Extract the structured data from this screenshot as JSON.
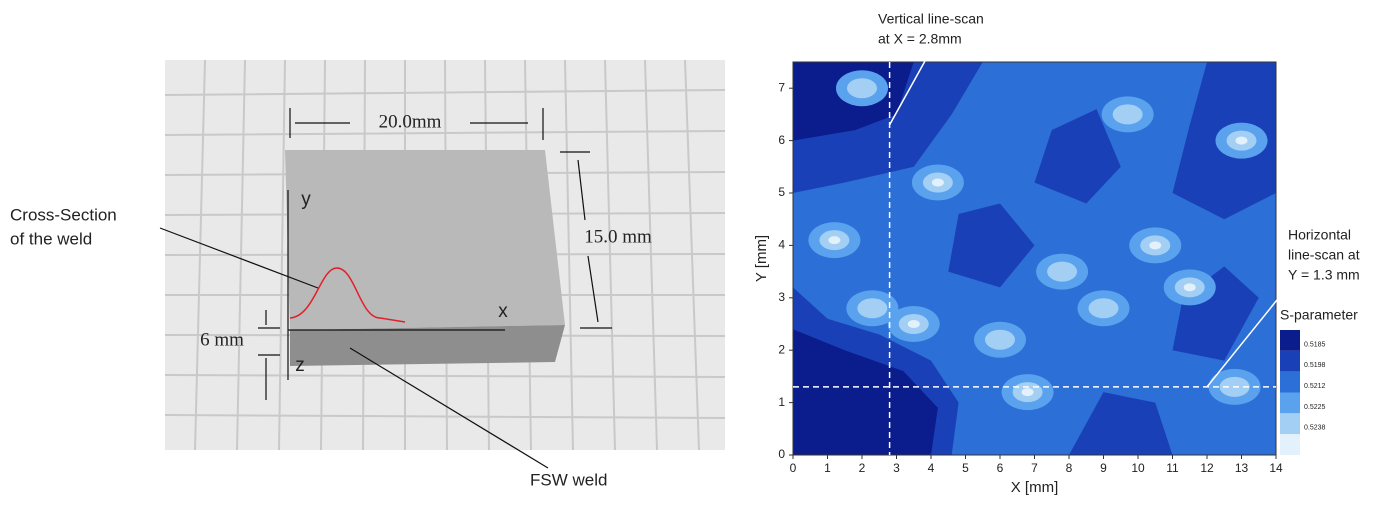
{
  "photo": {
    "width_label": "20.0mm",
    "height_label": "15.0 mm",
    "depth_label": "6 mm",
    "axes": [
      "y",
      "x",
      "z"
    ],
    "cross_section": [
      "Cross-Section",
      "of the weld"
    ],
    "weld": "FSW weld"
  },
  "chart_data": {
    "type": "contour",
    "xlabel": "X [mm]",
    "ylabel": "Y [mm]",
    "xlim": [
      0,
      14
    ],
    "ylim": [
      0,
      7.5
    ],
    "xticks": [
      0,
      1,
      2,
      3,
      4,
      5,
      6,
      7,
      8,
      9,
      10,
      11,
      12,
      13,
      14
    ],
    "yticks": [
      0,
      1,
      2,
      3,
      4,
      5,
      6,
      7
    ],
    "legend_title": "S-parameter",
    "levels": [
      0.5185,
      0.5198,
      0.5212,
      0.5225,
      0.5238
    ],
    "colors": [
      "#0b1d8c",
      "#1a40b8",
      "#2c6fd6",
      "#5aa2ee",
      "#a3cff5",
      "#e2f1fc"
    ],
    "annotations": [
      {
        "lines": [
          "Vertical line-scan",
          "at X = 2.8mm"
        ],
        "x": 2.8
      },
      {
        "lines": [
          "Horizontal",
          "line-scan at",
          "Y = 1.3 mm"
        ],
        "y": 1.3
      }
    ]
  }
}
